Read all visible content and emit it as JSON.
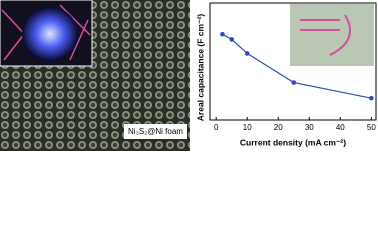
{
  "image_label": "Ni₃S₂@Ni foam",
  "chart_data": {
    "type": "line",
    "x_label": "Current density (mA cm⁻²)",
    "y_label": "Areal capacitance (F cm⁻²)",
    "x": [
      2,
      5,
      10,
      25,
      50
    ],
    "series": [
      {
        "name": "Ni₃S₂@Ni foam",
        "color": "#2b4fb0",
        "values": [
          21.5,
          20.5,
          17.8,
          12.2,
          9.2
        ]
      }
    ],
    "xlim": [
      -2,
      51.5
    ],
    "xticks": [
      0,
      10,
      20,
      30,
      40,
      50
    ],
    "ylim": [
      5,
      27.5
    ]
  }
}
